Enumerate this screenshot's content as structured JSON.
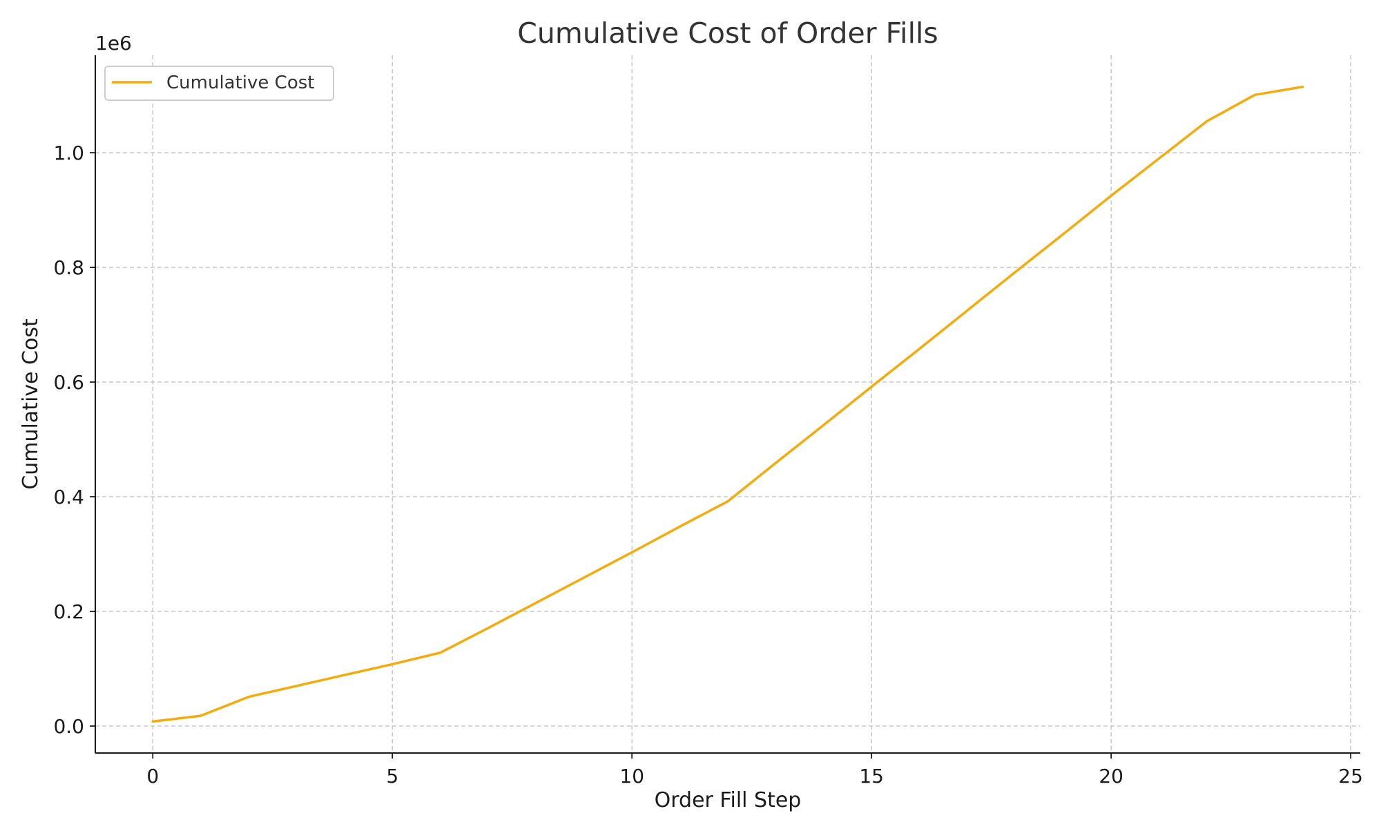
{
  "chart_data": {
    "type": "line",
    "title": "Cumulative Cost of Order Fills",
    "xlabel": "Order Fill Step",
    "ylabel": "Cumulative Cost",
    "y_offset_label": "1e6",
    "x_ticks": [
      "0",
      "5",
      "10",
      "15",
      "20",
      "25"
    ],
    "y_ticks": [
      "0.0",
      "0.2",
      "0.4",
      "0.6",
      "0.8",
      "1.0"
    ],
    "xlim": [
      -1.2,
      25.2
    ],
    "ylim": [
      -0.047,
      1.17
    ],
    "y_scale_note": "y values in units of 1e6",
    "grid": true,
    "legend_position": "top-left",
    "series": [
      {
        "name": "Cumulative Cost",
        "color": "#f5ab0b",
        "x": [
          0,
          1,
          2,
          3,
          4,
          5,
          6,
          7,
          8,
          9,
          10,
          11,
          12,
          13,
          14,
          15,
          16,
          17,
          18,
          19,
          20,
          21,
          22,
          23,
          24
        ],
        "y": [
          0.008,
          0.018,
          0.051,
          0.07,
          0.089,
          0.108,
          0.128,
          0.171,
          0.215,
          0.259,
          0.303,
          0.348,
          0.392,
          0.459,
          0.525,
          0.592,
          0.658,
          0.725,
          0.792,
          0.858,
          0.925,
          0.99,
          1.055,
          1.101,
          1.115
        ]
      }
    ]
  }
}
